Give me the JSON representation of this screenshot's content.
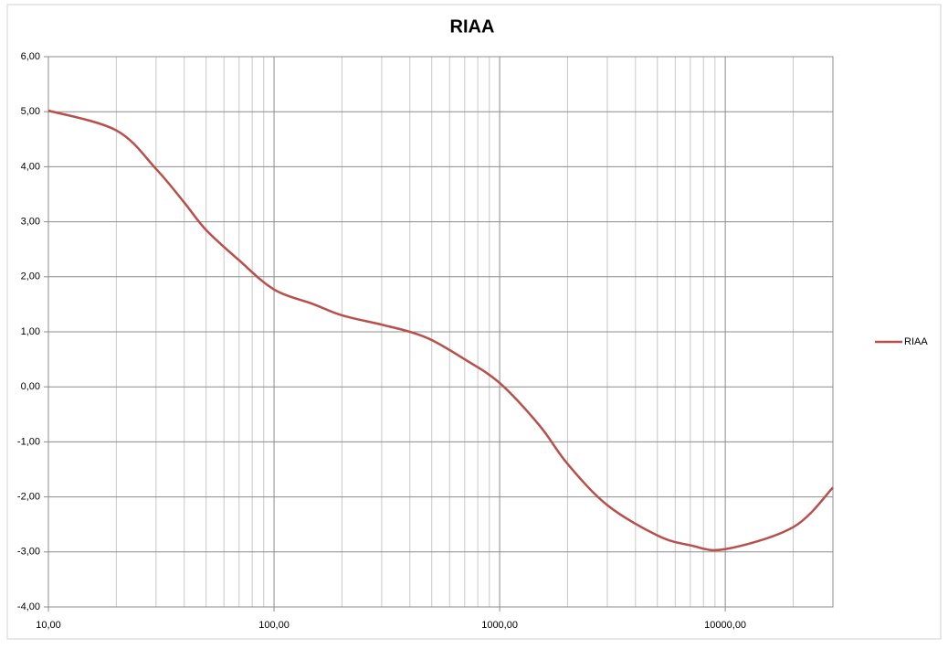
{
  "chart_data": {
    "type": "line",
    "title": "RIAA",
    "x": [
      10,
      20,
      30,
      40,
      50,
      70,
      100,
      150,
      200,
      300,
      400,
      500,
      700,
      1000,
      1500,
      2000,
      3000,
      5000,
      7000,
      10000,
      20000,
      30000
    ],
    "series": [
      {
        "name": "RIAA",
        "color": "#b84f4a",
        "values": [
          5.02,
          4.66,
          3.96,
          3.35,
          2.85,
          2.3,
          1.77,
          1.5,
          1.3,
          1.13,
          1.0,
          0.85,
          0.5,
          0.07,
          -0.7,
          -1.4,
          -2.15,
          -2.7,
          -2.88,
          -2.95,
          -2.55,
          -1.83
        ]
      }
    ],
    "xlim": [
      10,
      30000
    ],
    "xticks": [
      {
        "value": 10,
        "label": "10,00"
      },
      {
        "value": 100,
        "label": "100,00"
      },
      {
        "value": 1000,
        "label": "1000,00"
      },
      {
        "value": 10000,
        "label": "10000,00"
      }
    ],
    "xlog": true,
    "ylim": [
      -4,
      6
    ],
    "yticks": [
      {
        "value": -4,
        "label": "-4,00"
      },
      {
        "value": -3,
        "label": "-3,00"
      },
      {
        "value": -2,
        "label": "-2,00"
      },
      {
        "value": -1,
        "label": "-1,00"
      },
      {
        "value": 0,
        "label": "0,00"
      },
      {
        "value": 1,
        "label": "1,00"
      },
      {
        "value": 2,
        "label": "2,00"
      },
      {
        "value": 3,
        "label": "3,00"
      },
      {
        "value": 4,
        "label": "4,00"
      },
      {
        "value": 5,
        "label": "5,00"
      },
      {
        "value": 6,
        "label": "6,00"
      }
    ],
    "grid": true,
    "minor_grid": true,
    "legend": "right"
  }
}
